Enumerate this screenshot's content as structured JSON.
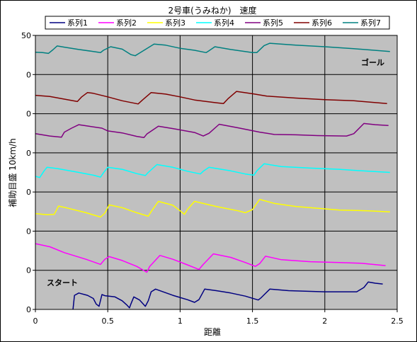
{
  "chart_data": {
    "type": "line",
    "title": "2号車(うみねか)　速度",
    "xlabel": "距離",
    "ylabel": "補助目盛 10km/h",
    "xlim": [
      0,
      2.5
    ],
    "x_ticks": [
      "0",
      "0.5",
      "1",
      "1.5",
      "2",
      "2.5"
    ],
    "y_ticks": [
      "0",
      "0",
      "0",
      "0",
      "0",
      "0",
      "0",
      "50"
    ],
    "grid": true,
    "legend_position": "top",
    "annotations": {
      "goal": "ゴール",
      "start": "スタート"
    },
    "series": [
      {
        "name": "系列1",
        "color": "#000080",
        "points": [
          [
            0.26,
            0
          ],
          [
            0.27,
            3.6
          ],
          [
            0.3,
            4.2
          ],
          [
            0.36,
            3.6
          ],
          [
            0.4,
            2.8
          ],
          [
            0.42,
            1.4
          ],
          [
            0.44,
            0.8
          ],
          [
            0.46,
            3.8
          ],
          [
            0.48,
            3.5
          ],
          [
            0.55,
            3.2
          ],
          [
            0.6,
            2.2
          ],
          [
            0.63,
            1.2
          ],
          [
            0.65,
            0.4
          ],
          [
            0.66,
            1.4
          ],
          [
            0.68,
            3.2
          ],
          [
            0.72,
            2.4
          ],
          [
            0.76,
            0.8
          ],
          [
            0.78,
            2.2
          ],
          [
            0.8,
            4.5
          ],
          [
            0.83,
            5.2
          ],
          [
            0.95,
            3.6
          ],
          [
            1.05,
            2.5
          ],
          [
            1.1,
            1.8
          ],
          [
            1.13,
            2.5
          ],
          [
            1.17,
            5.2
          ],
          [
            1.25,
            4.8
          ],
          [
            1.35,
            4.2
          ],
          [
            1.45,
            3.4
          ],
          [
            1.54,
            2.4
          ],
          [
            1.56,
            3.0
          ],
          [
            1.62,
            5.2
          ],
          [
            1.75,
            4.8
          ],
          [
            2.0,
            4.5
          ],
          [
            2.15,
            4.5
          ],
          [
            2.22,
            4.5
          ],
          [
            2.27,
            5.6
          ],
          [
            2.3,
            7.0
          ],
          [
            2.35,
            6.7
          ],
          [
            2.4,
            6.5
          ]
        ]
      },
      {
        "name": "系列2",
        "color": "#ff00ff",
        "points": [
          [
            0.0,
            16.8
          ],
          [
            0.1,
            16.0
          ],
          [
            0.2,
            14.5
          ],
          [
            0.35,
            12.8
          ],
          [
            0.45,
            11.5
          ],
          [
            0.48,
            12.8
          ],
          [
            0.51,
            13.5
          ],
          [
            0.6,
            12.5
          ],
          [
            0.7,
            11.0
          ],
          [
            0.77,
            9.5
          ],
          [
            0.79,
            11.0
          ],
          [
            0.86,
            13.8
          ],
          [
            0.95,
            12.8
          ],
          [
            1.05,
            11.4
          ],
          [
            1.13,
            10.2
          ],
          [
            1.16,
            11.5
          ],
          [
            1.23,
            14.2
          ],
          [
            1.35,
            13.3
          ],
          [
            1.45,
            12.0
          ],
          [
            1.52,
            11.0
          ],
          [
            1.55,
            11.7
          ],
          [
            1.59,
            13.6
          ],
          [
            1.7,
            12.7
          ],
          [
            1.9,
            12.2
          ],
          [
            2.1,
            12.0
          ],
          [
            2.25,
            11.8
          ],
          [
            2.42,
            11.2
          ]
        ]
      },
      {
        "name": "系列3",
        "color": "#ffff00",
        "points": [
          [
            0.0,
            24.5
          ],
          [
            0.08,
            24.2
          ],
          [
            0.13,
            24.3
          ],
          [
            0.16,
            26.4
          ],
          [
            0.22,
            25.9
          ],
          [
            0.35,
            24.7
          ],
          [
            0.45,
            23.6
          ],
          [
            0.48,
            24.6
          ],
          [
            0.51,
            26.7
          ],
          [
            0.6,
            26.0
          ],
          [
            0.7,
            24.7
          ],
          [
            0.78,
            23.8
          ],
          [
            0.8,
            25.0
          ],
          [
            0.85,
            27.6
          ],
          [
            0.95,
            26.6
          ],
          [
            1.0,
            25.2
          ],
          [
            1.03,
            24.3
          ],
          [
            1.05,
            25.5
          ],
          [
            1.1,
            27.6
          ],
          [
            1.25,
            26.3
          ],
          [
            1.4,
            25.2
          ],
          [
            1.45,
            24.7
          ],
          [
            1.5,
            25.5
          ],
          [
            1.55,
            28.1
          ],
          [
            1.65,
            27.1
          ],
          [
            1.8,
            26.3
          ],
          [
            2.1,
            25.4
          ],
          [
            2.3,
            25.2
          ],
          [
            2.45,
            24.9
          ]
        ]
      },
      {
        "name": "系列4",
        "color": "#00ffff",
        "points": [
          [
            0.0,
            34.0
          ],
          [
            0.03,
            33.7
          ],
          [
            0.06,
            35.4
          ],
          [
            0.08,
            36.3
          ],
          [
            0.15,
            36.0
          ],
          [
            0.3,
            35.0
          ],
          [
            0.4,
            34.3
          ],
          [
            0.45,
            33.8
          ],
          [
            0.47,
            34.9
          ],
          [
            0.5,
            36.3
          ],
          [
            0.6,
            35.8
          ],
          [
            0.7,
            34.7
          ],
          [
            0.76,
            34.2
          ],
          [
            0.78,
            35.0
          ],
          [
            0.84,
            37.0
          ],
          [
            0.95,
            36.3
          ],
          [
            1.05,
            35.3
          ],
          [
            1.14,
            34.6
          ],
          [
            1.16,
            35.3
          ],
          [
            1.2,
            36.3
          ],
          [
            1.35,
            35.4
          ],
          [
            1.45,
            34.6
          ],
          [
            1.51,
            34.3
          ],
          [
            1.53,
            35.4
          ],
          [
            1.58,
            37.2
          ],
          [
            1.7,
            36.5
          ],
          [
            1.9,
            36.1
          ],
          [
            2.1,
            35.8
          ],
          [
            2.3,
            35.3
          ],
          [
            2.45,
            35.0
          ]
        ]
      },
      {
        "name": "系列5",
        "color": "#800080",
        "points": [
          [
            0.0,
            44.9
          ],
          [
            0.1,
            44.3
          ],
          [
            0.18,
            44.0
          ],
          [
            0.2,
            45.3
          ],
          [
            0.25,
            46.3
          ],
          [
            0.3,
            47.2
          ],
          [
            0.37,
            46.8
          ],
          [
            0.46,
            46.3
          ],
          [
            0.5,
            45.6
          ],
          [
            0.6,
            45.1
          ],
          [
            0.7,
            44.2
          ],
          [
            0.75,
            43.9
          ],
          [
            0.77,
            44.8
          ],
          [
            0.85,
            46.8
          ],
          [
            0.95,
            46.2
          ],
          [
            1.1,
            45.2
          ],
          [
            1.16,
            44.3
          ],
          [
            1.2,
            45.0
          ],
          [
            1.27,
            47.3
          ],
          [
            1.4,
            46.4
          ],
          [
            1.55,
            45.3
          ],
          [
            1.65,
            44.7
          ],
          [
            1.8,
            44.6
          ],
          [
            1.95,
            44.4
          ],
          [
            2.15,
            44.3
          ],
          [
            2.2,
            44.9
          ],
          [
            2.27,
            47.5
          ],
          [
            2.35,
            47.2
          ],
          [
            2.44,
            47.0
          ]
        ]
      },
      {
        "name": "系列6",
        "color": "#800000",
        "points": [
          [
            0.0,
            54.7
          ],
          [
            0.1,
            54.4
          ],
          [
            0.22,
            53.6
          ],
          [
            0.29,
            53.1
          ],
          [
            0.32,
            54.3
          ],
          [
            0.36,
            55.4
          ],
          [
            0.4,
            55.2
          ],
          [
            0.5,
            54.3
          ],
          [
            0.6,
            53.3
          ],
          [
            0.71,
            52.5
          ],
          [
            0.74,
            53.5
          ],
          [
            0.8,
            55.4
          ],
          [
            0.9,
            55.0
          ],
          [
            1.0,
            54.3
          ],
          [
            1.1,
            53.5
          ],
          [
            1.25,
            52.8
          ],
          [
            1.3,
            52.6
          ],
          [
            1.33,
            53.8
          ],
          [
            1.39,
            55.7
          ],
          [
            1.5,
            55.1
          ],
          [
            1.6,
            54.5
          ],
          [
            1.8,
            54.0
          ],
          [
            2.0,
            53.6
          ],
          [
            2.2,
            53.3
          ],
          [
            2.43,
            52.6
          ]
        ]
      },
      {
        "name": "系列7",
        "color": "#008080",
        "points": [
          [
            0.0,
            65.7
          ],
          [
            0.05,
            65.6
          ],
          [
            0.09,
            65.4
          ],
          [
            0.12,
            66.3
          ],
          [
            0.15,
            67.3
          ],
          [
            0.2,
            67.0
          ],
          [
            0.3,
            66.4
          ],
          [
            0.4,
            65.9
          ],
          [
            0.45,
            65.6
          ],
          [
            0.47,
            66.2
          ],
          [
            0.52,
            67.1
          ],
          [
            0.6,
            66.5
          ],
          [
            0.66,
            65.1
          ],
          [
            0.69,
            64.8
          ],
          [
            0.72,
            65.5
          ],
          [
            0.82,
            67.8
          ],
          [
            0.9,
            67.5
          ],
          [
            1.0,
            66.7
          ],
          [
            1.1,
            66.2
          ],
          [
            1.18,
            65.6
          ],
          [
            1.2,
            66.1
          ],
          [
            1.24,
            67.1
          ],
          [
            1.35,
            66.4
          ],
          [
            1.5,
            65.6
          ],
          [
            1.53,
            65.6
          ],
          [
            1.58,
            67.4
          ],
          [
            1.62,
            68.0
          ],
          [
            1.8,
            67.5
          ],
          [
            2.0,
            67.1
          ],
          [
            2.2,
            66.6
          ],
          [
            2.38,
            66.1
          ],
          [
            2.45,
            65.9
          ]
        ]
      }
    ]
  }
}
